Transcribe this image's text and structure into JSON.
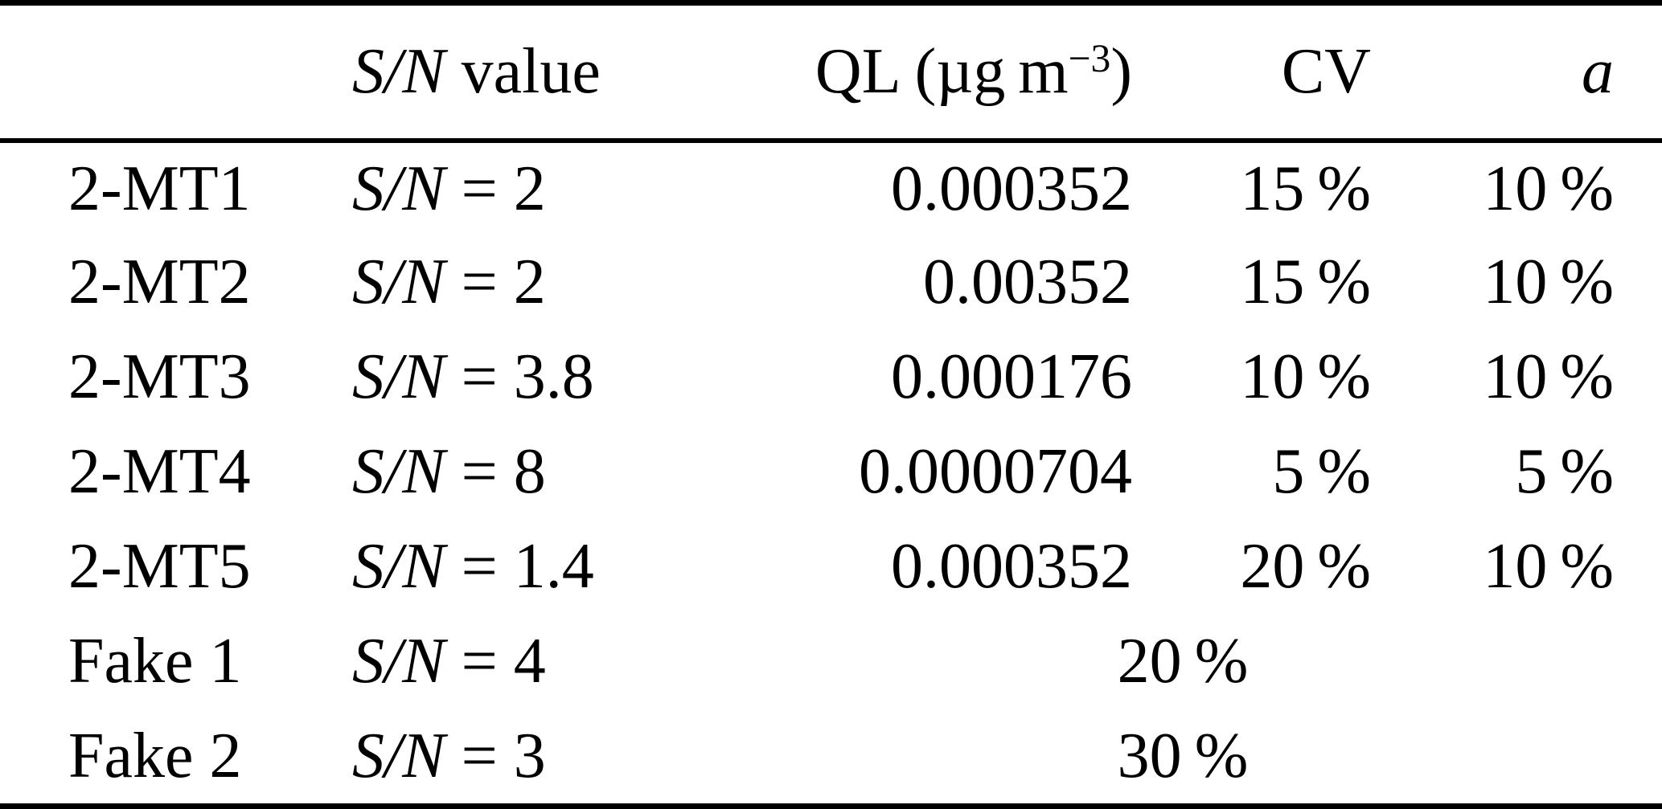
{
  "page": {
    "background_color": "#ffffff",
    "text_color": "#000000",
    "rule_color": "#000000"
  },
  "table": {
    "header": {
      "label": "",
      "sn_italic": "S/N",
      "sn_rest": " value",
      "ql_pre": "QL (µg m",
      "ql_sup": "−3",
      "ql_post": ")",
      "cv": "CV",
      "a": "a"
    },
    "rows": [
      {
        "label": "2-MT1",
        "sn_var": "S/N",
        "sn_rest": " = 2",
        "ql": "0.000352",
        "cv": "15 %",
        "a": "10 %"
      },
      {
        "label": "2-MT2",
        "sn_var": "S/N",
        "sn_rest": " = 2",
        "ql": "0.00352",
        "cv": "15 %",
        "a": "10 %"
      },
      {
        "label": "2-MT3",
        "sn_var": "S/N",
        "sn_rest": " = 3.8",
        "ql": "0.000176",
        "cv": "10 %",
        "a": "10 %"
      },
      {
        "label": "2-MT4",
        "sn_var": "S/N",
        "sn_rest": " = 8",
        "ql": "0.0000704",
        "cv": "5 %",
        "a": "5 %"
      },
      {
        "label": "2-MT5",
        "sn_var": "S/N",
        "sn_rest": " = 1.4",
        "ql": "0.000352",
        "cv": "20 %",
        "a": "10 %"
      },
      {
        "label": "Fake 1",
        "sn_var": "S/N",
        "sn_rest": " = 4",
        "merged": "20 %"
      },
      {
        "label": "Fake 2",
        "sn_var": "S/N",
        "sn_rest": " = 3",
        "merged": "30 %"
      }
    ]
  }
}
